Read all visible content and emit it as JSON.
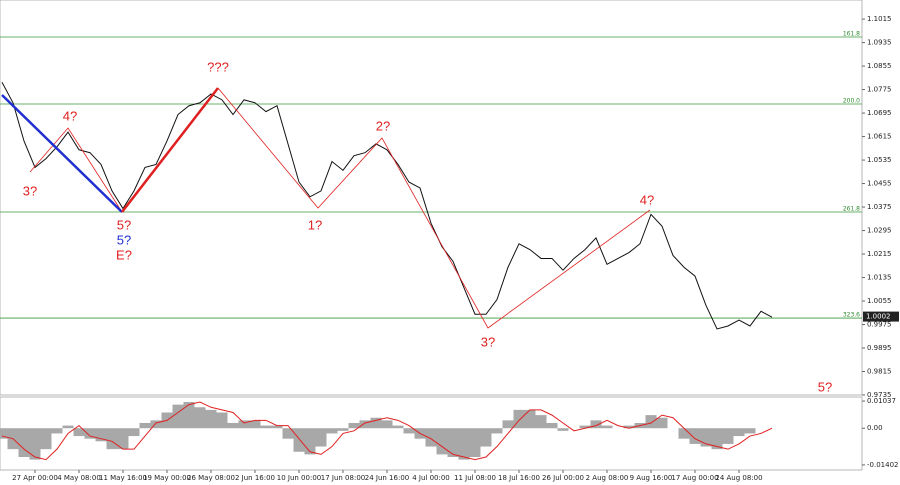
{
  "chart_data": [
    {
      "type": "line",
      "categories": [
        null,
        null,
        null,
        "27 Apr 00:00",
        null,
        null,
        null,
        "4 May 08:00",
        null,
        null,
        null,
        "11 May 16:00",
        null,
        null,
        null,
        "19 May 00:00",
        null,
        null,
        null,
        "26 May 08:00",
        null,
        null,
        null,
        "2 Jun 16:00",
        null,
        null,
        null,
        "10 Jun 00:00",
        null,
        null,
        null,
        "17 Jun 08:00",
        null,
        null,
        null,
        "24 Jun 16:00",
        null,
        null,
        null,
        "4 Jul 00:00",
        null,
        null,
        null,
        "11 Jul 08:00",
        null,
        null,
        null,
        "18 Jul 16:00",
        null,
        null,
        null,
        "26 Jul 00:00",
        null,
        null,
        null,
        "2 Aug 08:00",
        null,
        null,
        null,
        "9 Aug 16:00",
        null,
        null,
        null,
        "17 Aug 00:00",
        null,
        null,
        null,
        "24 Aug 08:00",
        null,
        null,
        null
      ],
      "series": [
        {
          "color": "#111111",
          "values": [
            1.08,
            1.073,
            1.06,
            1.051,
            1.054,
            1.058,
            1.063,
            1.057,
            1.056,
            1.052,
            1.043,
            1.037,
            1.043,
            1.051,
            1.052,
            1.06,
            1.069,
            1.072,
            1.073,
            1.076,
            1.074,
            1.069,
            1.074,
            1.073,
            1.07,
            1.072,
            1.059,
            1.046,
            1.041,
            1.043,
            1.053,
            1.05,
            1.055,
            1.056,
            1.059,
            1.057,
            1.052,
            1.046,
            1.044,
            1.032,
            1.024,
            1.019,
            1.01,
            1.001,
            1.001,
            1.006,
            1.017,
            1.025,
            1.023,
            1.02,
            1.02,
            1.016,
            1.02,
            1.023,
            1.027,
            1.018,
            1.02,
            1.022,
            1.025,
            1.035,
            1.031,
            1.021,
            1.017,
            1.014,
            1.004,
            0.996,
            0.997,
            0.999,
            0.997,
            1.002,
            1.0
          ]
        }
      ],
      "ylim": [
        0.9735,
        1.108
      ],
      "yticks": [
        1.1015,
        1.0935,
        1.0855,
        1.0775,
        1.0695,
        1.0615,
        1.0535,
        1.0455,
        1.0375,
        1.0295,
        1.0215,
        1.0135,
        1.0055,
        0.9975,
        0.9895,
        0.9815,
        0.9735
      ],
      "last_price": 1.0002,
      "fib_levels": [
        {
          "label": "161.8",
          "price": 1.0954
        },
        {
          "label": "200.0",
          "price": 1.0726
        },
        {
          "label": "261.8",
          "price": 1.0358
        },
        {
          "label": "323.6",
          "price": 0.9997
        }
      ],
      "fib_color": "#3a9a3a",
      "annotations": [
        {
          "text": "3?",
          "color": "#e02020"
        },
        {
          "text": "4?",
          "color": "#e02020"
        },
        {
          "text": "5?",
          "color": "#e02020"
        },
        {
          "text": "5?",
          "color": "#2030d0"
        },
        {
          "text": "E?",
          "color": "#e02020"
        },
        {
          "text": "???",
          "color": "#e02020"
        },
        {
          "text": "1?",
          "color": "#e02020"
        },
        {
          "text": "2?",
          "color": "#e02020"
        },
        {
          "text": "3?",
          "color": "#e02020"
        },
        {
          "text": "4?",
          "color": "#e02020"
        },
        {
          "text": "5?",
          "color": "#e02020"
        }
      ]
    },
    {
      "type": "bar",
      "series": [
        {
          "color": "#a8a8a8",
          "values": [
            -0.004,
            -0.008,
            -0.011,
            -0.012,
            -0.008,
            -0.002,
            0.001,
            -0.003,
            -0.004,
            -0.005,
            -0.008,
            -0.008,
            -0.003,
            0.002,
            0.003,
            0.006,
            0.009,
            0.01,
            0.008,
            0.007,
            0.006,
            0.002,
            0.003,
            0.003,
            0.001,
            0.001,
            -0.004,
            -0.009,
            -0.01,
            -0.007,
            -0.002,
            -0.001,
            0.002,
            0.003,
            0.004,
            0.003,
            0.001,
            -0.002,
            -0.004,
            -0.007,
            -0.01,
            -0.011,
            -0.012,
            -0.011,
            -0.007,
            -0.002,
            0.003,
            0.007,
            0.007,
            0.005,
            0.002,
            -0.001,
            0.0,
            0.001,
            0.003,
            0.001,
            0.0,
            0.001,
            0.002,
            0.005,
            0.004,
            0.0,
            -0.004,
            -0.006,
            -0.007,
            -0.008,
            -0.006,
            -0.003,
            -0.002,
            0.0,
            0.0
          ]
        },
        {
          "color": "#e02020",
          "values": [
            -0.003,
            -0.004,
            -0.008,
            -0.011,
            -0.012,
            -0.008,
            -0.002,
            0.001,
            -0.003,
            -0.004,
            -0.005,
            -0.008,
            -0.008,
            -0.003,
            0.002,
            0.003,
            0.006,
            0.009,
            0.01,
            0.008,
            0.007,
            0.006,
            0.002,
            0.003,
            0.003,
            0.001,
            0.001,
            -0.004,
            -0.009,
            -0.01,
            -0.007,
            -0.002,
            -0.001,
            0.002,
            0.003,
            0.004,
            0.003,
            0.001,
            -0.002,
            -0.004,
            -0.007,
            -0.01,
            -0.011,
            -0.012,
            -0.011,
            -0.007,
            -0.002,
            0.003,
            0.007,
            0.007,
            0.005,
            0.002,
            -0.001,
            0.0,
            0.001,
            0.003,
            0.001,
            0.0,
            0.001,
            0.002,
            0.005,
            0.004,
            0.0,
            -0.004,
            -0.006,
            -0.007,
            -0.008,
            -0.006,
            -0.003,
            -0.002,
            0.0
          ]
        }
      ],
      "ylim": [
        -0.01596,
        0.01192
      ],
      "yticks": [
        0.01037,
        {
          "value": 0,
          "label": "0.00"
        },
        -0.01402
      ]
    }
  ]
}
